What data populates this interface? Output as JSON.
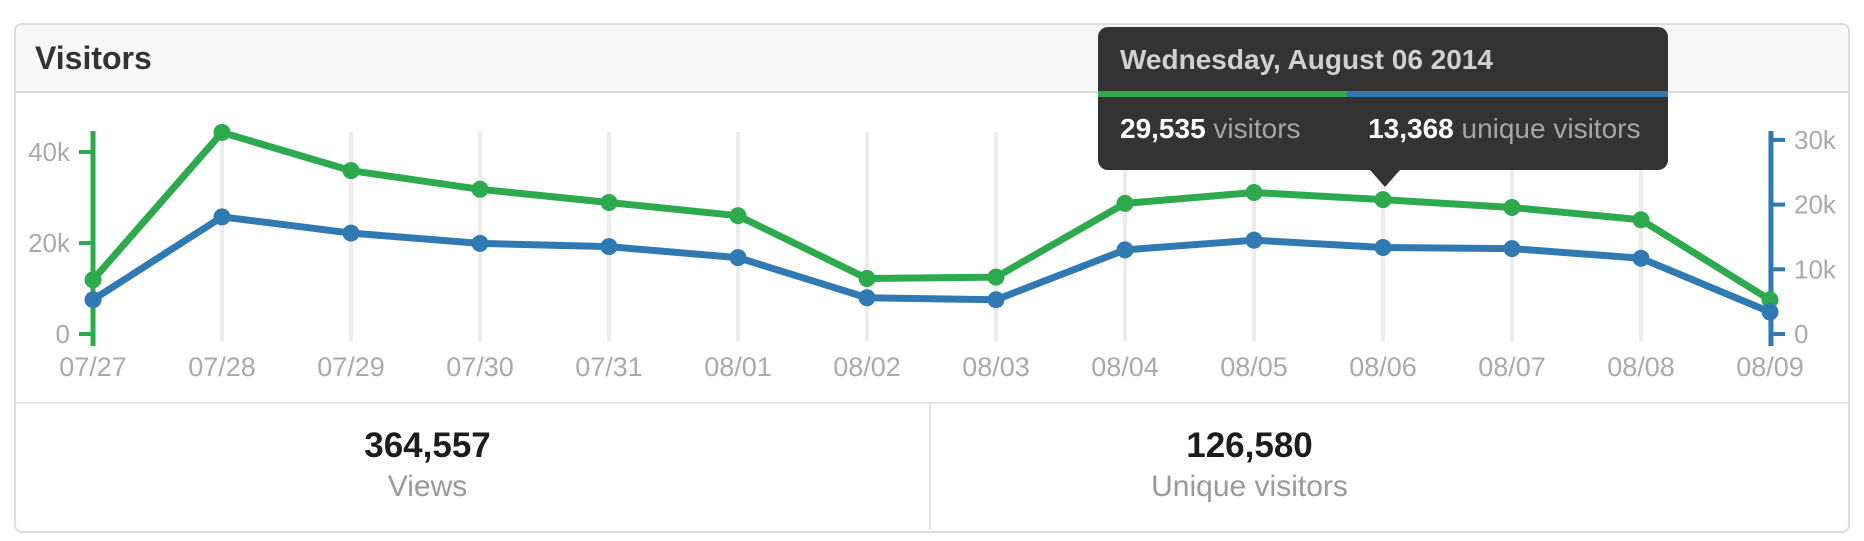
{
  "panel": {
    "title": "Visitors"
  },
  "colors": {
    "views_green": "#2caa4d",
    "unique_blue": "#3179b2",
    "grid": "#ececec",
    "axis_label": "#aaaaaa",
    "tooltip_bg": "#333333"
  },
  "chart_data": {
    "type": "line",
    "x_labels": [
      "07/27",
      "07/28",
      "07/29",
      "07/30",
      "07/31",
      "08/01",
      "08/02",
      "08/03",
      "08/04",
      "08/05",
      "08/06",
      "08/07",
      "08/08",
      "08/09"
    ],
    "series": [
      {
        "id": "visitors",
        "name": "visitors",
        "axis": "left",
        "color": "#2caa4d",
        "values": [
          11900,
          44300,
          35900,
          31800,
          28900,
          26000,
          12200,
          12500,
          28700,
          31100,
          29535,
          27800,
          25100,
          7500
        ]
      },
      {
        "id": "unique-visitors",
        "name": "unique visitors",
        "axis": "right",
        "color": "#3179b2",
        "values": [
          5300,
          18100,
          15600,
          14000,
          13500,
          11800,
          5600,
          5300,
          13000,
          14500,
          13368,
          13200,
          11700,
          3400
        ]
      }
    ],
    "left_axis": {
      "color": "#2caa4d",
      "ylim": [
        0,
        44600
      ],
      "ticks": [
        {
          "value": 0,
          "label": "0"
        },
        {
          "value": 20000,
          "label": "20k"
        },
        {
          "value": 40000,
          "label": "40k"
        }
      ]
    },
    "right_axis": {
      "color": "#3179b2",
      "ylim": [
        0,
        31400
      ],
      "ticks": [
        {
          "value": 0,
          "label": "0"
        },
        {
          "value": 10000,
          "label": "10k"
        },
        {
          "value": 20000,
          "label": "20k"
        },
        {
          "value": 30000,
          "label": "30k"
        }
      ]
    },
    "grid": true,
    "legend": "none",
    "title": "Visitors"
  },
  "tooltip": {
    "title": "Wednesday, August 06 2014",
    "anchor_x_label": "08/06",
    "stats": [
      {
        "value": "29,535",
        "label": " visitors",
        "color": "#2caa4d"
      },
      {
        "value": "13,368",
        "label": " unique visitors",
        "color": "#3179b2"
      }
    ]
  },
  "summary": [
    {
      "value": "364,557",
      "label": "Views"
    },
    {
      "value": "126,580",
      "label": "Unique visitors"
    }
  ]
}
